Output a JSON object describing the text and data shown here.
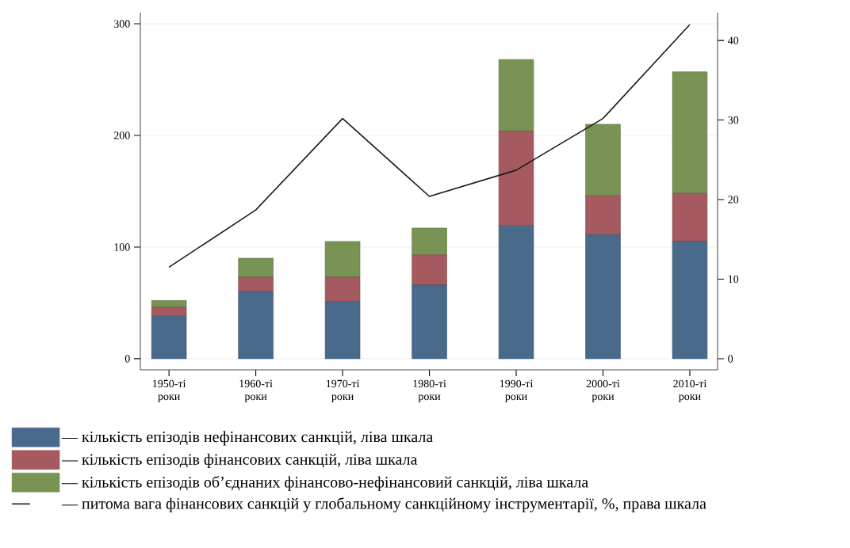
{
  "chart_data": {
    "type": "bar",
    "stacked": true,
    "categories": [
      "1950-ті роки",
      "1960-ті роки",
      "1970-ті роки",
      "1980-ті роки",
      "1990-ті роки",
      "2000-ті роки",
      "2010-ті роки"
    ],
    "series": [
      {
        "name": "— кількість епізодів нефінансових санкцій, ліва шкала",
        "color": "#4a6a8c",
        "values": [
          38,
          60,
          51,
          66,
          119,
          111,
          105
        ]
      },
      {
        "name": "— кількість епізодів фінансових санкцій, ліва шкала",
        "color": "#a55a5f",
        "values": [
          8,
          13,
          22,
          27,
          85,
          35,
          43
        ]
      },
      {
        "name": "— кількість епізодів об’єднаних фінансово-нефінансовий санкцій, ліва шкала",
        "color": "#789354",
        "values": [
          6,
          17,
          32,
          24,
          64,
          64,
          109
        ]
      },
      {
        "name": "— питома вага фінансових санкцій у глобальному санкційному інструментарії, %, права шкала",
        "color": "#1a1a1a",
        "type": "line",
        "axis": "y2",
        "values": [
          11.5,
          18.7,
          30.2,
          20.4,
          23.7,
          30.2,
          42.0
        ]
      }
    ],
    "ylim": [
      -10,
      310
    ],
    "yticks": [
      0,
      100,
      200,
      300
    ],
    "y2lim": [
      -1.4,
      43.5
    ],
    "y2ticks": [
      0,
      10,
      20,
      30,
      40
    ],
    "grid": "y",
    "legend": "bottom"
  }
}
